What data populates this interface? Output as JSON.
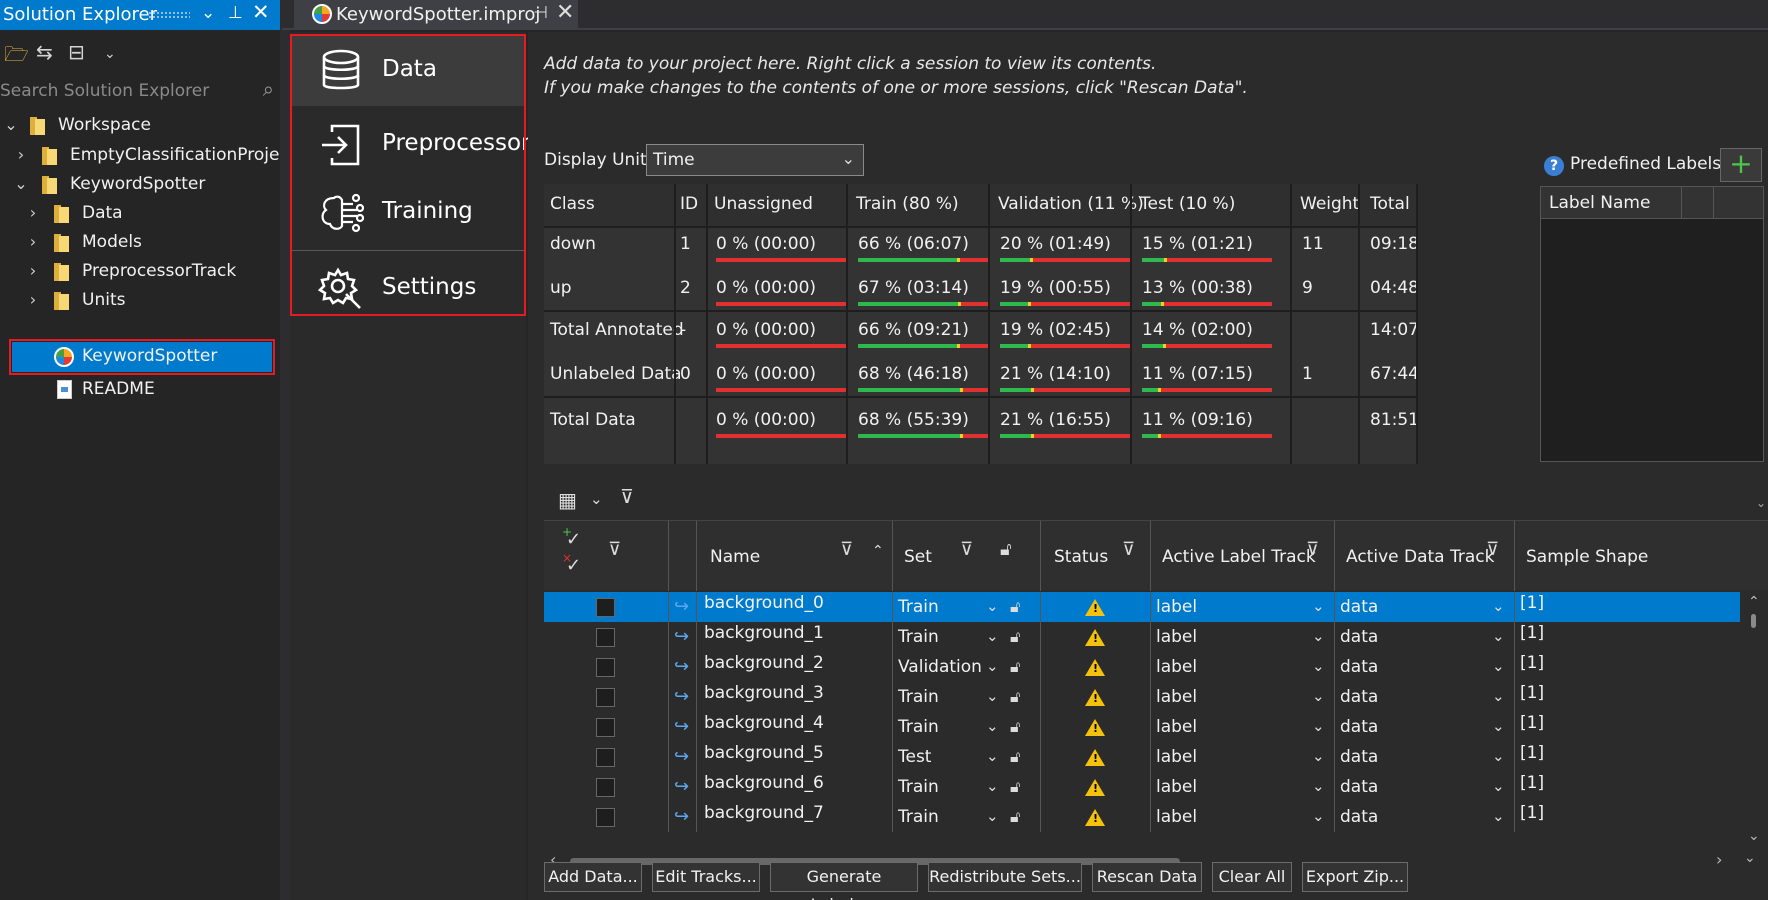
{
  "solution_explorer": {
    "title": "Solution Explorer",
    "search_placeholder": "Search Solution Explorer",
    "tree": [
      {
        "label": "Workspace"
      },
      {
        "label": "EmptyClassificationProject"
      },
      {
        "label": "KeywordSpotter"
      },
      {
        "label": "Data"
      },
      {
        "label": "Models"
      },
      {
        "label": "PreprocessorTrack"
      },
      {
        "label": "Units"
      },
      {
        "label": "KeywordSpotter"
      },
      {
        "label": "README"
      }
    ]
  },
  "tab": {
    "label": "KeywordSpotter.improj"
  },
  "nav": [
    {
      "label": "Data",
      "icon": "database-icon"
    },
    {
      "label": "Preprocessor",
      "icon": "import-icon"
    },
    {
      "label": "Training",
      "icon": "neural-network-icon"
    },
    {
      "label": "Settings",
      "icon": "gear-icon"
    }
  ],
  "main": {
    "info_line1": "Add data to your project here. Right click a session to view its contents.",
    "info_line2": "If you make changes to the contents of one or more sessions, click \"Rescan Data\".",
    "display_unit_label": "Display Unit",
    "display_unit_value": "Time",
    "predefined_labels": {
      "title": "Predefined Labels",
      "add": "+",
      "help": "?",
      "columns": [
        "Label Name"
      ]
    }
  },
  "stats": {
    "headers": [
      "Class",
      "ID",
      "Unassigned",
      "Train (80 %)",
      "Validation (11 %)",
      "Test (10 %)",
      "Weight",
      "Total"
    ],
    "rows": [
      {
        "class": "down",
        "id": "1",
        "unassigned": "0 %   (00:00)",
        "train": "66 %   (06:07)",
        "validation": "20 %   (01:49)",
        "test": "15 %   (01:21)",
        "weight": "11",
        "total": "09:18",
        "train_frac": 0.66,
        "val_frac": 0.2,
        "test_frac": 0.15
      },
      {
        "class": "up",
        "id": "2",
        "unassigned": "0 %   (00:00)",
        "train": "67 %   (03:14)",
        "validation": "19 %   (00:55)",
        "test": "13 %   (00:38)",
        "weight": "9",
        "total": "04:48",
        "train_frac": 0.67,
        "val_frac": 0.19,
        "test_frac": 0.13
      },
      {
        "class": "Total Annotated",
        "id": "-",
        "unassigned": "0 %   (00:00)",
        "train": "66 %   (09:21)",
        "validation": "19 %   (02:45)",
        "test": "14 %   (02:00)",
        "weight": "",
        "total": "14:07",
        "train_frac": 0.66,
        "val_frac": 0.19,
        "test_frac": 0.14
      },
      {
        "class": "Unlabeled Data",
        "id": "0",
        "unassigned": "0 %   (00:00)",
        "train": "68 %   (46:18)",
        "validation": "21 %   (14:10)",
        "test": "11 %   (07:15)",
        "weight": "1",
        "total": "67:44",
        "train_frac": 0.68,
        "val_frac": 0.21,
        "test_frac": 0.11
      },
      {
        "class": "Total Data",
        "id": "",
        "unassigned": "0 %   (00:00)",
        "train": "68 %   (55:39)",
        "validation": "21 %   (16:55)",
        "test": "11 %   (09:16)",
        "weight": "",
        "total": "81:51",
        "train_frac": 0.68,
        "val_frac": 0.21,
        "test_frac": 0.11
      }
    ]
  },
  "grid": {
    "headers": [
      "Name",
      "Set",
      "Status",
      "Active Label Track",
      "Active Data Track",
      "Sample Shape"
    ],
    "rows": [
      {
        "name": "background_0",
        "set": "Train",
        "label_track": "label",
        "data_track": "data",
        "shape": "[1]"
      },
      {
        "name": "background_1",
        "set": "Train",
        "label_track": "label",
        "data_track": "data",
        "shape": "[1]"
      },
      {
        "name": "background_2",
        "set": "Validation",
        "label_track": "label",
        "data_track": "data",
        "shape": "[1]"
      },
      {
        "name": "background_3",
        "set": "Train",
        "label_track": "label",
        "data_track": "data",
        "shape": "[1]"
      },
      {
        "name": "background_4",
        "set": "Train",
        "label_track": "label",
        "data_track": "data",
        "shape": "[1]"
      },
      {
        "name": "background_5",
        "set": "Test",
        "label_track": "label",
        "data_track": "data",
        "shape": "[1]"
      },
      {
        "name": "background_6",
        "set": "Train",
        "label_track": "label",
        "data_track": "data",
        "shape": "[1]"
      },
      {
        "name": "background_7",
        "set": "Train",
        "label_track": "label",
        "data_track": "data",
        "shape": "[1]"
      }
    ]
  },
  "buttons": [
    "Add Data...",
    "Edit Tracks...",
    "Generate Labels...",
    "Redistribute Sets...",
    "Rescan Data",
    "Clear All",
    "Export Zip..."
  ],
  "colors": {
    "accent": "#007acc",
    "highlight": "#e51b23",
    "bar_red": "#e03030",
    "bar_green": "#2db94d",
    "warn": "#f4c20d"
  }
}
